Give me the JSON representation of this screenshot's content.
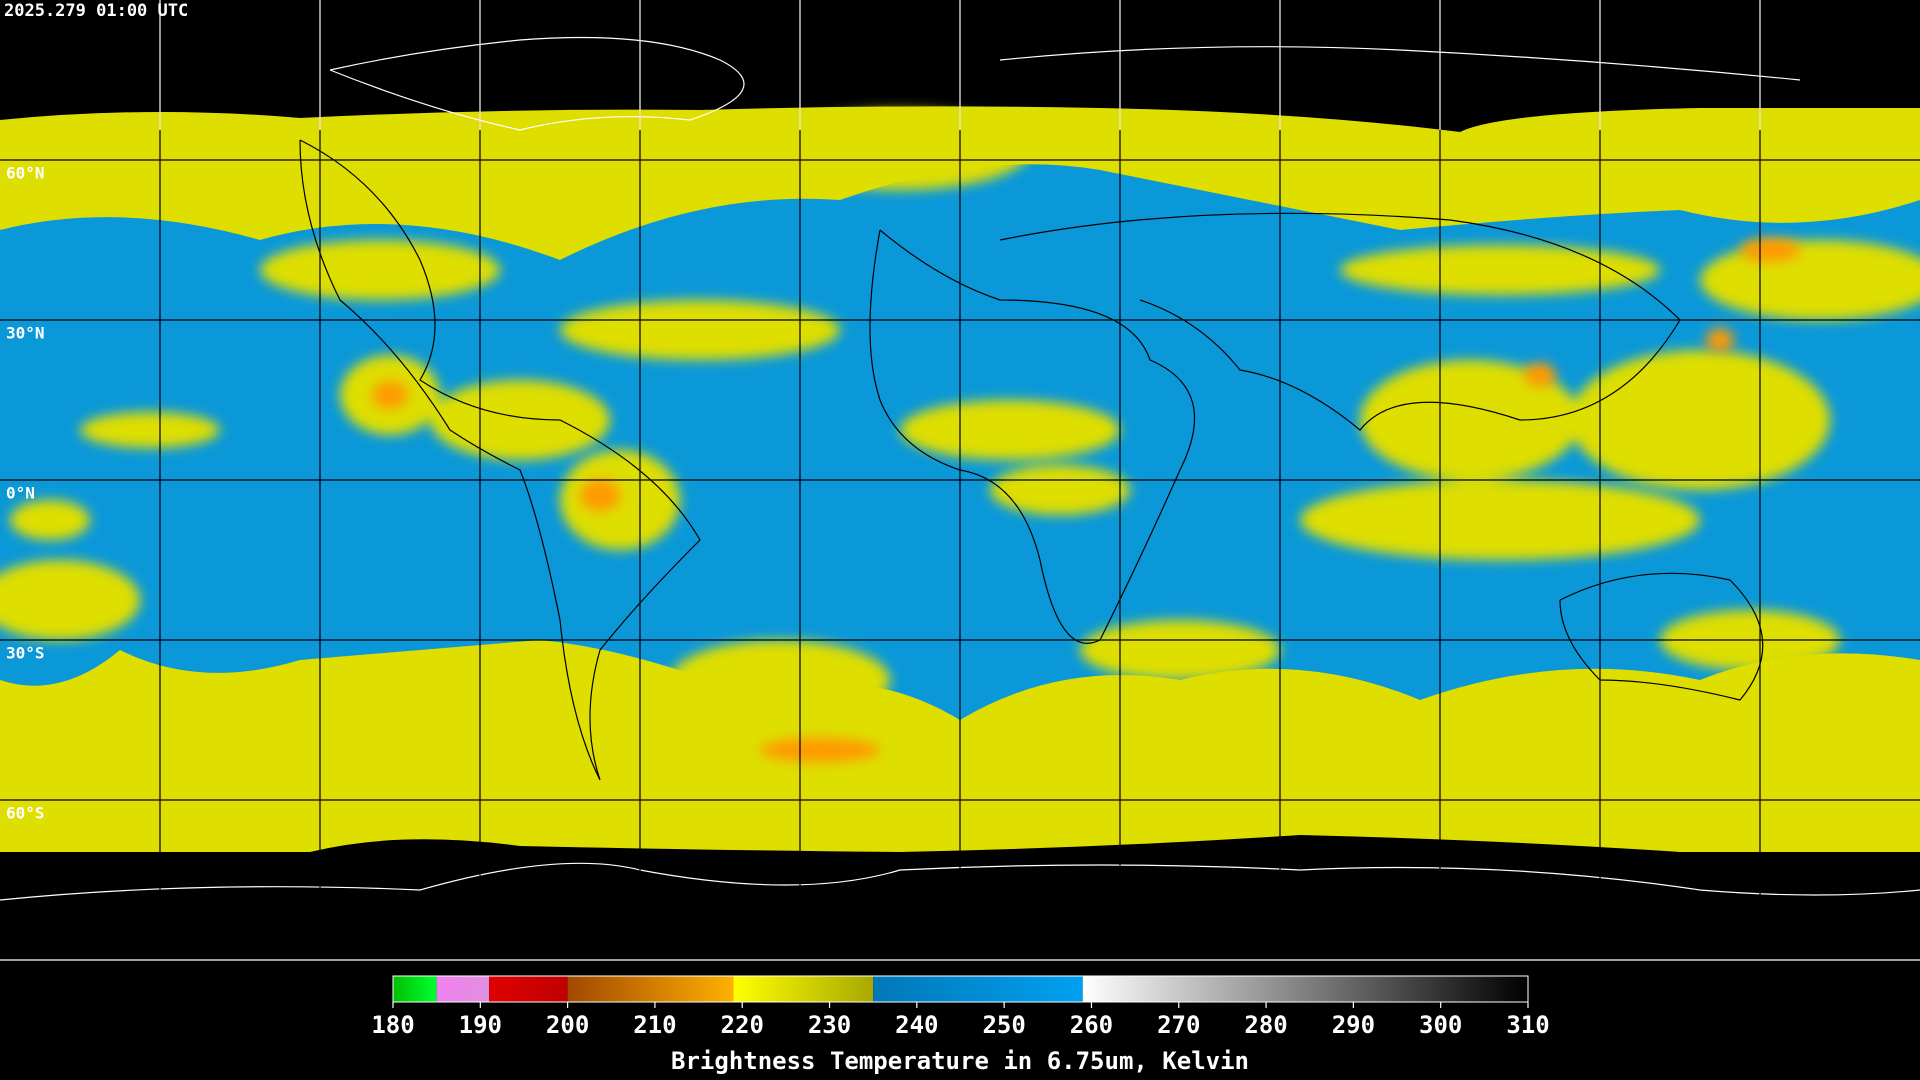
{
  "header": {
    "timestamp": "2025.279 01:00 UTC"
  },
  "map": {
    "lon_range": [
      -180,
      180
    ],
    "lat_range": [
      -90,
      90
    ],
    "lon_lines": [
      -150,
      -120,
      -90,
      -60,
      -30,
      0,
      30,
      60,
      90,
      120,
      150
    ],
    "lat_lines": [
      {
        "value": 60,
        "label": "60°N"
      },
      {
        "value": 30,
        "label": "30°N"
      },
      {
        "value": 0,
        "label": "0°N"
      },
      {
        "value": -30,
        "label": "30°S"
      },
      {
        "value": -60,
        "label": "60°S"
      }
    ]
  },
  "colorbar": {
    "title": "Brightness Temperature in 6.75um, Kelvin",
    "range": [
      180,
      310
    ],
    "ticks": [
      180,
      190,
      200,
      210,
      220,
      230,
      240,
      250,
      260,
      270,
      280,
      290,
      300,
      310
    ],
    "segments": [
      {
        "from": 180,
        "to": 185,
        "colors": [
          "#00c000",
          "#00ff30"
        ]
      },
      {
        "from": 185,
        "to": 191,
        "colors": [
          "#f080f0",
          "#e090e0"
        ]
      },
      {
        "from": 191,
        "to": 200,
        "colors": [
          "#e00000",
          "#c00000"
        ]
      },
      {
        "from": 200,
        "to": 219,
        "colors": [
          "#a04800",
          "#ffb000"
        ]
      },
      {
        "from": 219,
        "to": 235,
        "colors": [
          "#ffff00",
          "#a8a800"
        ]
      },
      {
        "from": 235,
        "to": 259,
        "colors": [
          "#0078b8",
          "#00a0f0"
        ]
      },
      {
        "from": 259,
        "to": 310,
        "colors": [
          "#ffffff",
          "#000000"
        ]
      }
    ]
  }
}
